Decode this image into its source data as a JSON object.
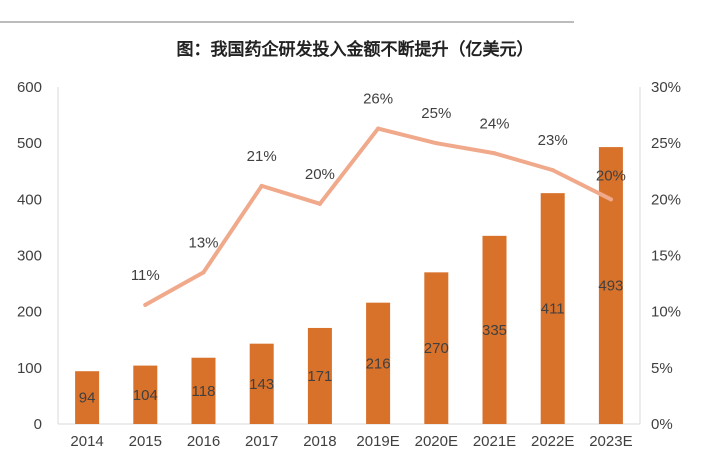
{
  "chart_data": {
    "type": "bar",
    "title": "图：我国药企研发投入金额不断提升（亿美元）",
    "categories": [
      "2014",
      "2015",
      "2016",
      "2017",
      "2018",
      "2019E",
      "2020E",
      "2021E",
      "2022E",
      "2023E"
    ],
    "series": [
      {
        "type": "bar",
        "axis": "left",
        "values": [
          94,
          104,
          118,
          143,
          171,
          216,
          270,
          335,
          411,
          493
        ],
        "labels": [
          "94",
          "104",
          "118",
          "143",
          "171",
          "216",
          "270",
          "335",
          "411",
          "493"
        ],
        "color": "#d8712a"
      },
      {
        "type": "line",
        "axis": "right",
        "values": [
          null,
          0.106,
          0.135,
          0.212,
          0.196,
          0.263,
          0.25,
          0.241,
          0.226,
          0.2
        ],
        "labels": [
          null,
          "11%",
          "13%",
          "21%",
          "20%",
          "26%",
          "25%",
          "24%",
          "23%",
          "20%"
        ],
        "color": "#f0a98a"
      }
    ],
    "y_left": {
      "min": 0,
      "max": 600,
      "ticks": [
        "0",
        "100",
        "200",
        "300",
        "400",
        "500",
        "600"
      ]
    },
    "y_right": {
      "min": 0,
      "max": 0.3,
      "ticks": [
        "0%",
        "5%",
        "10%",
        "15%",
        "20%",
        "25%",
        "30%"
      ]
    },
    "grid": false,
    "legend": "none",
    "colors": {
      "axis": "#d9d9d9",
      "text": "#404040",
      "rule": "#a6a6a6"
    }
  }
}
